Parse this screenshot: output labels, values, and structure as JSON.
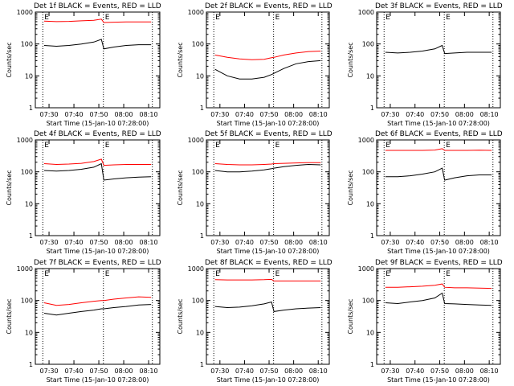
{
  "chart_data": [
    {
      "type": "line",
      "title": "Det 1f BLACK = Events, RED = LLD",
      "xlabel": "Start Time (15-Jan-10 07:28:00)",
      "ylabel": "Counts/sec",
      "log_y": true,
      "ylim": [
        1,
        1000
      ],
      "xlim": [
        "07:24:30",
        "08:14:30"
      ],
      "y_ticks": [
        "1",
        "10",
        "100",
        "1000"
      ],
      "x_ticks": [
        "07:30",
        "07:40",
        "07:50",
        "08:00",
        "08:10"
      ],
      "x_tick_values": [
        "07:30",
        "07:40",
        "07:50",
        "08:00",
        "08:10"
      ],
      "markers": [
        {
          "time": "07:27:30",
          "label": "E"
        },
        {
          "time": "07:51:50",
          "label": "E"
        },
        {
          "time": "08:11:30",
          "label": ""
        }
      ],
      "series": [
        {
          "color": "#ff0000",
          "x": [
            "07:28",
            "07:33",
            "07:38",
            "07:43",
            "07:48",
            "07:51",
            "07:52",
            "07:56",
            "08:01",
            "08:06",
            "08:11"
          ],
          "y": [
            520,
            500,
            510,
            530,
            550,
            600,
            470,
            480,
            490,
            490,
            490
          ]
        },
        {
          "color": "#000000",
          "x": [
            "07:28",
            "07:33",
            "07:38",
            "07:43",
            "07:48",
            "07:51",
            "07:52",
            "07:56",
            "08:01",
            "08:06",
            "08:11"
          ],
          "y": [
            90,
            85,
            90,
            100,
            115,
            140,
            70,
            80,
            90,
            95,
            95
          ]
        }
      ]
    },
    {
      "type": "line",
      "title": "Det 2f BLACK = Events, RED = LLD",
      "xlabel": "Start Time (15-Jan-10 07:28:00)",
      "ylabel": "Counts/sec",
      "log_y": true,
      "ylim": [
        1,
        1000
      ],
      "xlim": [
        "07:24:30",
        "08:14:30"
      ],
      "y_ticks": [
        "1",
        "10",
        "100",
        "1000"
      ],
      "x_ticks": [
        "07:30",
        "07:40",
        "07:50",
        "08:00",
        "08:10"
      ],
      "x_tick_values": [
        "07:30",
        "07:40",
        "07:50",
        "08:00",
        "08:10"
      ],
      "markers": [
        {
          "time": "07:27:30",
          "label": "E"
        },
        {
          "time": "07:51:50",
          "label": "E"
        },
        {
          "time": "08:11:30",
          "label": ""
        }
      ],
      "series": [
        {
          "color": "#ff0000",
          "x": [
            "07:28",
            "07:33",
            "07:38",
            "07:43",
            "07:48",
            "07:51",
            "07:52",
            "07:56",
            "08:01",
            "08:06",
            "08:11"
          ],
          "y": [
            45,
            38,
            34,
            32,
            33,
            37,
            38,
            45,
            52,
            58,
            60
          ]
        },
        {
          "color": "#000000",
          "x": [
            "07:28",
            "07:33",
            "07:38",
            "07:43",
            "07:48",
            "07:51",
            "07:52",
            "07:56",
            "08:01",
            "08:06",
            "08:11"
          ],
          "y": [
            16,
            10,
            8,
            8,
            9,
            11,
            12,
            17,
            24,
            28,
            30
          ]
        }
      ]
    },
    {
      "type": "line",
      "title": "Det 3f BLACK = Events, RED = LLD",
      "xlabel": "Start Time (15-Jan-10 07:28:00)",
      "ylabel": "Counts/sec",
      "log_y": true,
      "ylim": [
        1,
        1000
      ],
      "xlim": [
        "07:24:30",
        "08:14:30"
      ],
      "y_ticks": [
        "1",
        "10",
        "100",
        "1000"
      ],
      "x_ticks": [
        "07:30",
        "07:40",
        "07:50",
        "08:00",
        "08:10"
      ],
      "x_tick_values": [
        "07:30",
        "07:40",
        "07:50",
        "08:00",
        "08:10"
      ],
      "markers": [
        {
          "time": "07:27:30",
          "label": "E"
        },
        {
          "time": "07:51:50",
          "label": "E"
        },
        {
          "time": "08:11:30",
          "label": ""
        }
      ],
      "series": [
        {
          "color": "#000000",
          "x": [
            "07:28",
            "07:33",
            "07:38",
            "07:43",
            "07:48",
            "07:51",
            "07:52",
            "07:56",
            "08:01",
            "08:06",
            "08:11"
          ],
          "y": [
            55,
            52,
            55,
            60,
            70,
            90,
            50,
            52,
            55,
            55,
            55
          ]
        }
      ]
    },
    {
      "type": "line",
      "title": "Det 4f BLACK = Events, RED = LLD",
      "xlabel": "Start Time (15-Jan-10 07:28:00)",
      "ylabel": "Counts/sec",
      "log_y": true,
      "ylim": [
        1,
        1000
      ],
      "xlim": [
        "07:24:30",
        "08:14:30"
      ],
      "y_ticks": [
        "1",
        "10",
        "100",
        "1000"
      ],
      "x_ticks": [
        "07:30",
        "07:40",
        "07:50",
        "08:00",
        "08:10"
      ],
      "x_tick_values": [
        "07:30",
        "07:40",
        "07:50",
        "08:00",
        "08:10"
      ],
      "markers": [
        {
          "time": "07:27:30",
          "label": "E"
        },
        {
          "time": "07:51:50",
          "label": "E"
        },
        {
          "time": "08:11:30",
          "label": ""
        }
      ],
      "series": [
        {
          "color": "#ff0000",
          "x": [
            "07:28",
            "07:33",
            "07:38",
            "07:43",
            "07:48",
            "07:51",
            "07:52",
            "07:56",
            "08:01",
            "08:06",
            "08:11"
          ],
          "y": [
            180,
            170,
            175,
            185,
            210,
            250,
            160,
            165,
            170,
            170,
            170
          ]
        },
        {
          "color": "#000000",
          "x": [
            "07:28",
            "07:33",
            "07:38",
            "07:43",
            "07:48",
            "07:51",
            "07:52",
            "07:56",
            "08:01",
            "08:06",
            "08:11"
          ],
          "y": [
            110,
            105,
            110,
            120,
            140,
            180,
            55,
            60,
            65,
            68,
            70
          ]
        }
      ]
    },
    {
      "type": "line",
      "title": "Det 5f BLACK = Events, RED = LLD",
      "xlabel": "Start Time (15-Jan-10 07:28:00)",
      "ylabel": "Counts/sec",
      "log_y": true,
      "ylim": [
        1,
        1000
      ],
      "xlim": [
        "07:24:30",
        "08:14:30"
      ],
      "y_ticks": [
        "1",
        "10",
        "100",
        "1000"
      ],
      "x_ticks": [
        "07:30",
        "07:40",
        "07:50",
        "08:00",
        "08:10"
      ],
      "x_tick_values": [
        "07:30",
        "07:40",
        "07:50",
        "08:00",
        "08:10"
      ],
      "markers": [
        {
          "time": "07:27:30",
          "label": "E"
        },
        {
          "time": "07:51:50",
          "label": "E"
        },
        {
          "time": "08:11:30",
          "label": ""
        }
      ],
      "series": [
        {
          "color": "#ff0000",
          "x": [
            "07:28",
            "07:33",
            "07:38",
            "07:43",
            "07:48",
            "07:51",
            "07:52",
            "07:56",
            "08:01",
            "08:06",
            "08:11"
          ],
          "y": [
            180,
            170,
            165,
            165,
            170,
            175,
            180,
            185,
            190,
            195,
            195
          ]
        },
        {
          "color": "#000000",
          "x": [
            "07:28",
            "07:33",
            "07:38",
            "07:43",
            "07:48",
            "07:51",
            "07:52",
            "07:56",
            "08:01",
            "08:06",
            "08:11"
          ],
          "y": [
            110,
            100,
            100,
            105,
            115,
            125,
            130,
            145,
            160,
            170,
            165
          ]
        }
      ]
    },
    {
      "type": "line",
      "title": "Det 6f BLACK = Events, RED = LLD",
      "xlabel": "Start Time (15-Jan-10 07:28:00)",
      "ylabel": "Counts/sec",
      "log_y": true,
      "ylim": [
        1,
        1000
      ],
      "xlim": [
        "07:24:30",
        "08:14:30"
      ],
      "y_ticks": [
        "1",
        "10",
        "100",
        "1000"
      ],
      "x_ticks": [
        "07:30",
        "07:40",
        "07:50",
        "08:00",
        "08:10"
      ],
      "x_tick_values": [
        "07:30",
        "07:40",
        "07:50",
        "08:00",
        "08:10"
      ],
      "markers": [
        {
          "time": "07:27:30",
          "label": "E"
        },
        {
          "time": "07:51:50",
          "label": "E"
        },
        {
          "time": "08:11:30",
          "label": ""
        }
      ],
      "series": [
        {
          "color": "#ff0000",
          "x": [
            "07:28",
            "07:33",
            "07:38",
            "07:43",
            "07:48",
            "07:51",
            "07:52",
            "07:56",
            "08:01",
            "08:06",
            "08:11"
          ],
          "y": [
            470,
            470,
            470,
            470,
            480,
            530,
            470,
            470,
            470,
            475,
            470
          ]
        },
        {
          "color": "#000000",
          "x": [
            "07:28",
            "07:33",
            "07:38",
            "07:43",
            "07:48",
            "07:51",
            "07:52",
            "07:56",
            "08:01",
            "08:06",
            "08:11"
          ],
          "y": [
            70,
            70,
            75,
            85,
            100,
            130,
            55,
            65,
            75,
            80,
            80
          ]
        }
      ]
    },
    {
      "type": "line",
      "title": "Det 7f BLACK = Events, RED = LLD",
      "xlabel": "Start Time (15-Jan-10 07:28:00)",
      "ylabel": "Counts/sec",
      "log_y": true,
      "ylim": [
        1,
        1000
      ],
      "xlim": [
        "07:24:30",
        "08:14:30"
      ],
      "y_ticks": [
        "1",
        "10",
        "100",
        "1000"
      ],
      "x_ticks": [
        "07:30",
        "07:40",
        "07:50",
        "08:00",
        "08:10"
      ],
      "x_tick_values": [
        "07:30",
        "07:40",
        "07:50",
        "08:00",
        "08:10"
      ],
      "markers": [
        {
          "time": "07:27:30",
          "label": "E"
        },
        {
          "time": "07:51:50",
          "label": "E"
        },
        {
          "time": "08:11:30",
          "label": ""
        }
      ],
      "series": [
        {
          "color": "#ff0000",
          "x": [
            "07:28",
            "07:33",
            "07:38",
            "07:43",
            "07:48",
            "07:51",
            "07:52",
            "07:56",
            "08:01",
            "08:06",
            "08:11"
          ],
          "y": [
            85,
            70,
            75,
            85,
            95,
            100,
            100,
            110,
            120,
            130,
            125
          ]
        },
        {
          "color": "#000000",
          "x": [
            "07:28",
            "07:33",
            "07:38",
            "07:43",
            "07:48",
            "07:51",
            "07:52",
            "07:56",
            "08:01",
            "08:06",
            "08:11"
          ],
          "y": [
            40,
            35,
            40,
            45,
            50,
            55,
            55,
            60,
            65,
            72,
            75
          ]
        }
      ]
    },
    {
      "type": "line",
      "title": "Det 8f BLACK = Events, RED = LLD",
      "xlabel": "Start Time (15-Jan-10 07:28:00)",
      "ylabel": "Counts/sec",
      "log_y": true,
      "ylim": [
        1,
        1000
      ],
      "xlim": [
        "07:24:30",
        "08:14:30"
      ],
      "y_ticks": [
        "1",
        "10",
        "100",
        "1000"
      ],
      "x_ticks": [
        "07:30",
        "07:40",
        "07:50",
        "08:00",
        "08:10"
      ],
      "x_tick_values": [
        "07:30",
        "07:40",
        "07:50",
        "08:00",
        "08:10"
      ],
      "markers": [
        {
          "time": "07:27:30",
          "label": "E"
        },
        {
          "time": "07:51:50",
          "label": "E"
        },
        {
          "time": "08:11:30",
          "label": ""
        }
      ],
      "series": [
        {
          "color": "#ff0000",
          "x": [
            "07:28",
            "07:33",
            "07:38",
            "07:43",
            "07:48",
            "07:51",
            "07:52",
            "07:56",
            "08:01",
            "08:06",
            "08:11"
          ],
          "y": [
            450,
            440,
            440,
            440,
            450,
            460,
            410,
            410,
            410,
            410,
            410
          ]
        },
        {
          "color": "#000000",
          "x": [
            "07:28",
            "07:33",
            "07:38",
            "07:43",
            "07:48",
            "07:51",
            "07:52",
            "07:56",
            "08:01",
            "08:06",
            "08:11"
          ],
          "y": [
            65,
            60,
            62,
            68,
            78,
            90,
            45,
            50,
            55,
            58,
            60
          ]
        }
      ]
    },
    {
      "type": "line",
      "title": "Det 9f BLACK = Events, RED = LLD",
      "xlabel": "Start Time (15-Jan-10 07:28:00)",
      "ylabel": "Counts/sec",
      "log_y": true,
      "ylim": [
        1,
        1000
      ],
      "xlim": [
        "07:24:30",
        "08:14:30"
      ],
      "y_ticks": [
        "1",
        "10",
        "100",
        "1000"
      ],
      "x_ticks": [
        "07:30",
        "07:40",
        "07:50",
        "08:00",
        "08:10"
      ],
      "x_tick_values": [
        "07:30",
        "07:40",
        "07:50",
        "08:00",
        "08:10"
      ],
      "markers": [
        {
          "time": "07:27:30",
          "label": "E"
        },
        {
          "time": "07:51:50",
          "label": "E"
        },
        {
          "time": "08:11:30",
          "label": ""
        }
      ],
      "series": [
        {
          "color": "#ff0000",
          "x": [
            "07:28",
            "07:33",
            "07:38",
            "07:43",
            "07:48",
            "07:51",
            "07:52",
            "07:56",
            "08:01",
            "08:06",
            "08:11"
          ],
          "y": [
            260,
            260,
            270,
            280,
            300,
            330,
            260,
            250,
            250,
            245,
            240
          ]
        },
        {
          "color": "#000000",
          "x": [
            "07:28",
            "07:33",
            "07:38",
            "07:43",
            "07:48",
            "07:51",
            "07:52",
            "07:56",
            "08:01",
            "08:06",
            "08:11"
          ],
          "y": [
            85,
            80,
            90,
            100,
            120,
            170,
            80,
            78,
            75,
            72,
            70
          ]
        }
      ]
    }
  ]
}
